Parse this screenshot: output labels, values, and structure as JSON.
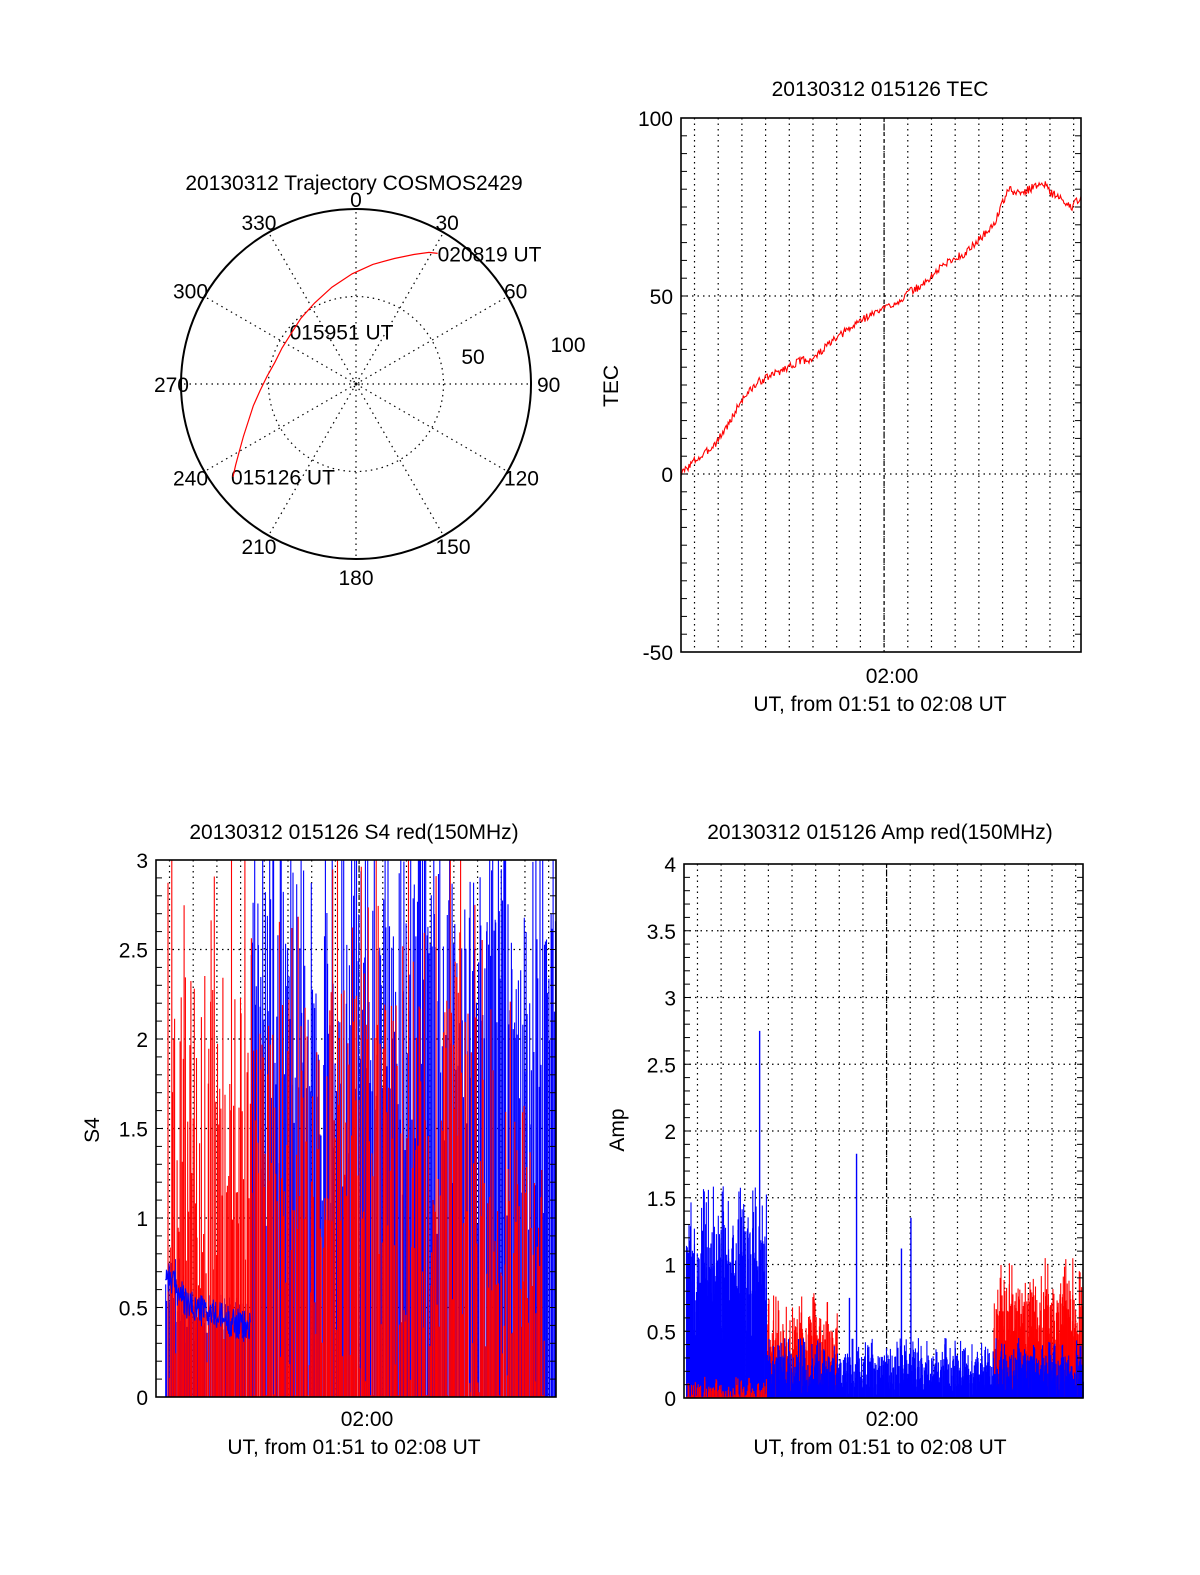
{
  "chart_data": [
    {
      "id": "trajectory",
      "type": "polar",
      "title": "20130312 Trajectory COSMOS2429",
      "angular_ticks": [
        "0",
        "30",
        "60",
        "90",
        "120",
        "150",
        "180",
        "210",
        "240",
        "270",
        "300",
        "330"
      ],
      "angular_tick_values": [
        0,
        30,
        60,
        90,
        120,
        150,
        180,
        210,
        240,
        270,
        300,
        330
      ],
      "radial_ticks": [
        "50",
        "100"
      ],
      "radial_tick_values": [
        50,
        100
      ],
      "radial_range": [
        0,
        100
      ],
      "series": [
        {
          "name": "trajectory",
          "color": "#ff0000",
          "azimuth": [
            233,
            236,
            240,
            245,
            251,
            258,
            266,
            275,
            285,
            296,
            308,
            320,
            333,
            346,
            358,
            8,
            17,
            24,
            29,
            32
          ],
          "zenith": [
            88,
            83,
            77,
            71,
            65,
            60,
            55,
            51,
            48,
            47,
            47,
            49,
            52,
            57,
            63,
            69,
            75,
            81,
            86,
            88
          ]
        }
      ],
      "annotations": [
        {
          "text": "015126 UT",
          "azimuth": 233,
          "zenith": 88
        },
        {
          "text": "015951 UT",
          "azimuth": 344,
          "zenith": 30
        },
        {
          "text": "020819 UT",
          "azimuth": 32,
          "zenith": 88
        }
      ]
    },
    {
      "id": "tec",
      "type": "line",
      "title": "20130312 015126 TEC",
      "ylabel": "TEC",
      "xlabel": "UT, from 01:51 to 02:08 UT",
      "xtick_label": "02:00",
      "ylim": [
        -50,
        100
      ],
      "yticks": [
        "100",
        "50",
        "0",
        "-50"
      ],
      "ytick_values": [
        100,
        50,
        0,
        -50
      ],
      "xlim_minutes": [
        0,
        16.88
      ],
      "xtick_minute": 8.57,
      "series": [
        {
          "name": "TEC",
          "color": "#ff0000",
          "x": [
            0,
            0.3,
            0.6,
            0.9,
            1.2,
            1.5,
            1.8,
            2.1,
            2.4,
            2.7,
            3.0,
            3.3,
            3.6,
            3.9,
            4.2,
            4.5,
            4.8,
            5.1,
            5.4,
            5.7,
            6.0,
            6.3,
            6.6,
            6.9,
            7.2,
            7.5,
            7.8,
            8.1,
            8.4,
            8.7,
            9.0,
            9.3,
            9.6,
            9.9,
            10.2,
            10.5,
            10.8,
            11.1,
            11.4,
            11.7,
            12.0,
            12.3,
            12.6,
            12.9,
            13.2,
            13.5,
            13.8,
            14.1,
            14.4,
            14.7,
            15.0,
            15.3,
            15.6,
            15.9,
            16.2,
            16.5,
            16.88
          ],
          "y": [
            0,
            2,
            4,
            5,
            7,
            9,
            12,
            15,
            19,
            22,
            24,
            26,
            27,
            28,
            29,
            30,
            31,
            32,
            32,
            33,
            35,
            37,
            38,
            40,
            41,
            43,
            44,
            45,
            46,
            47,
            48,
            49,
            51,
            52,
            53,
            55,
            57,
            59,
            60,
            61,
            62,
            64,
            66,
            68,
            70,
            75,
            80,
            79,
            79,
            80,
            81,
            82,
            79,
            78,
            76,
            75,
            78
          ]
        }
      ]
    },
    {
      "id": "s4",
      "type": "bar",
      "title": "20130312 015126 S4 red(150MHz)",
      "ylabel": "S4",
      "xlabel": "UT, from 01:51 to 02:08 UT",
      "xtick_label": "02:00",
      "ylim": [
        0,
        3
      ],
      "yticks": [
        "3",
        "2.5",
        "2",
        "1.5",
        "1",
        "0.5",
        "0"
      ],
      "ytick_values": [
        3,
        2.5,
        2,
        1.5,
        1,
        0.5,
        0
      ],
      "xlim_minutes": [
        0,
        16.88
      ],
      "xtick_minute": 8.57,
      "series": [
        {
          "name": "red",
          "color": "#ff0000",
          "seed": 7,
          "segments": [
            {
              "from": 0.5,
              "to": 4.0,
              "base": 1.55,
              "spread": 1.6
            },
            {
              "from": 4.0,
              "to": 6.5,
              "base": 1.45,
              "spread": 1.7
            },
            {
              "from": 6.5,
              "to": 9.0,
              "base": 1.6,
              "spread": 1.6
            },
            {
              "from": 9.0,
              "to": 12.8,
              "base": 1.3,
              "spread": 1.9
            },
            {
              "from": 12.8,
              "to": 14.3,
              "base": 1.6,
              "spread": 1.6
            },
            {
              "from": 14.3,
              "to": 16.4,
              "base": 0.95,
              "spread": 1.3
            }
          ]
        },
        {
          "name": "blue",
          "color": "#0000ff",
          "seed": 13,
          "segments": [
            {
              "from": 0.4,
              "to": 1.2,
              "base": 0.65,
              "spread": 0.25
            },
            {
              "from": 1.2,
              "to": 4.0,
              "base": 0.45,
              "spread": 0.15
            },
            {
              "from": 4.0,
              "to": 16.88,
              "base": 2.3,
              "spread": 1.4
            }
          ]
        }
      ]
    },
    {
      "id": "amp",
      "type": "bar",
      "title": "20130312 015126 Amp red(150MHz)",
      "ylabel": "Amp",
      "xlabel": "UT, from 01:51 to 02:08 UT",
      "xtick_label": "02:00",
      "ylim": [
        0,
        4
      ],
      "yticks": [
        "4",
        "3.5",
        "3",
        "2.5",
        "2",
        "1.5",
        "1",
        "0.5",
        "0"
      ],
      "ytick_values": [
        4,
        3.5,
        3,
        2.5,
        2,
        1.5,
        1,
        0.5,
        0
      ],
      "xlim_minutes": [
        0,
        16.88
      ],
      "xtick_minute": 8.57,
      "series": [
        {
          "name": "red",
          "color": "#ff0000",
          "seed": 21,
          "segments": [
            {
              "from": 0.1,
              "to": 3.5,
              "base": 0.04,
              "spread": 0.12
            },
            {
              "from": 3.5,
              "to": 6.5,
              "base": 0.4,
              "spread": 0.4
            },
            {
              "from": 6.5,
              "to": 13.1,
              "base": 0.1,
              "spread": 0.15
            },
            {
              "from": 13.1,
              "to": 16.88,
              "base": 0.6,
              "spread": 0.45
            }
          ]
        },
        {
          "name": "blue",
          "color": "#0000ff",
          "seed": 5,
          "segments": [
            {
              "from": 0.1,
              "to": 3.5,
              "base": 1.0,
              "spread": 0.6
            },
            {
              "from": 3.5,
              "to": 16.88,
              "base": 0.2,
              "spread": 0.25
            }
          ],
          "spikes": [
            {
              "x": 3.2,
              "y": 2.75
            },
            {
              "x": 7.3,
              "y": 1.83
            },
            {
              "x": 9.2,
              "y": 1.12
            },
            {
              "x": 9.6,
              "y": 1.35
            },
            {
              "x": 7.0,
              "y": 0.75
            }
          ]
        }
      ]
    }
  ]
}
